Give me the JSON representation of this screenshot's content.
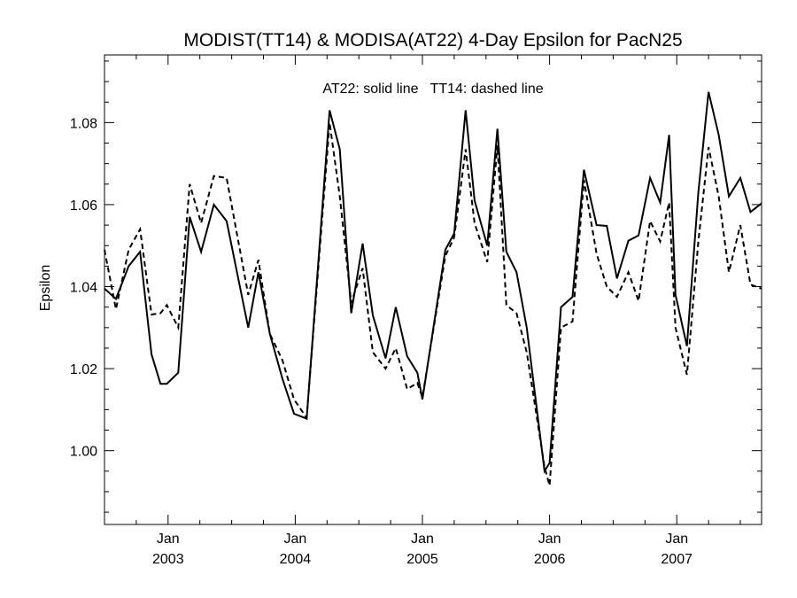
{
  "chart_data": {
    "type": "line",
    "title": "MODIST(TT14) & MODISA(AT22) 4-Day Epsilon for PacN25",
    "ylabel": "Epsilon",
    "xlabel": "",
    "annotation": "AT22: solid line   TT14: dashed line",
    "x_unit": "decimal year",
    "xlim": [
      2002.5,
      2007.667
    ],
    "ylim": [
      0.982,
      1.0965
    ],
    "grid": false,
    "y_ticks": [
      {
        "value": 1.0,
        "label": "1.00"
      },
      {
        "value": 1.02,
        "label": "1.02"
      },
      {
        "value": 1.04,
        "label": "1.04"
      },
      {
        "value": 1.06,
        "label": "1.06"
      },
      {
        "value": 1.08,
        "label": "1.08"
      }
    ],
    "x_ticks": [
      {
        "value": 2003.0,
        "month": "Jan",
        "year": "2003"
      },
      {
        "value": 2004.0,
        "month": "Jan",
        "year": "2004"
      },
      {
        "value": 2005.0,
        "month": "Jan",
        "year": "2005"
      },
      {
        "value": 2006.0,
        "month": "Jan",
        "year": "2006"
      },
      {
        "value": 2007.0,
        "month": "Jan",
        "year": "2007"
      }
    ],
    "series": [
      {
        "name": "AT22",
        "style": "solid",
        "color": "#000000",
        "points": [
          [
            2002.5,
            1.0395
          ],
          [
            2002.59,
            1.037
          ],
          [
            2002.69,
            1.045
          ],
          [
            2002.78,
            1.0485
          ],
          [
            2002.87,
            1.0235
          ],
          [
            2002.94,
            1.0163
          ],
          [
            2002.99,
            1.0163
          ],
          [
            2003.08,
            1.019
          ],
          [
            2003.17,
            1.057
          ],
          [
            2003.26,
            1.0485
          ],
          [
            2003.36,
            1.06
          ],
          [
            2003.46,
            1.056
          ],
          [
            2003.63,
            1.03
          ],
          [
            2003.71,
            1.0435
          ],
          [
            2003.8,
            1.0285
          ],
          [
            2003.9,
            1.0175
          ],
          [
            2003.99,
            1.009
          ],
          [
            2004.09,
            1.0078
          ],
          [
            2004.27,
            1.083
          ],
          [
            2004.35,
            1.0735
          ],
          [
            2004.44,
            1.0335
          ],
          [
            2004.53,
            1.0505
          ],
          [
            2004.61,
            1.033
          ],
          [
            2004.71,
            1.0225
          ],
          [
            2004.79,
            1.035
          ],
          [
            2004.88,
            1.023
          ],
          [
            2004.96,
            1.019
          ],
          [
            2005.0,
            1.0125
          ],
          [
            2005.18,
            1.049
          ],
          [
            2005.25,
            1.053
          ],
          [
            2005.34,
            1.083
          ],
          [
            2005.41,
            1.061
          ],
          [
            2005.51,
            1.05
          ],
          [
            2005.59,
            1.0785
          ],
          [
            2005.66,
            1.0485
          ],
          [
            2005.74,
            1.0435
          ],
          [
            2005.82,
            1.03
          ],
          [
            2005.96,
            0.995
          ],
          [
            2006.0,
            0.997
          ],
          [
            2006.09,
            1.035
          ],
          [
            2006.18,
            1.0375
          ],
          [
            2006.27,
            1.0685
          ],
          [
            2006.37,
            1.055
          ],
          [
            2006.45,
            1.0548
          ],
          [
            2006.53,
            1.042
          ],
          [
            2006.62,
            1.0512
          ],
          [
            2006.7,
            1.0525
          ],
          [
            2006.79,
            1.0665
          ],
          [
            2006.87,
            1.0605
          ],
          [
            2006.94,
            1.077
          ],
          [
            2006.99,
            1.038
          ],
          [
            2007.08,
            1.0255
          ],
          [
            2007.17,
            1.063
          ],
          [
            2007.25,
            1.0875
          ],
          [
            2007.33,
            1.077
          ],
          [
            2007.41,
            1.062
          ],
          [
            2007.5,
            1.0665
          ],
          [
            2007.58,
            1.0582
          ],
          [
            2007.667,
            1.0603
          ]
        ]
      },
      {
        "name": "TT14",
        "style": "dashed",
        "color": "#000000",
        "points": [
          [
            2002.5,
            1.049
          ],
          [
            2002.59,
            1.0345
          ],
          [
            2002.69,
            1.049
          ],
          [
            2002.78,
            1.054
          ],
          [
            2002.87,
            1.0332
          ],
          [
            2002.94,
            1.0335
          ],
          [
            2002.99,
            1.0355
          ],
          [
            2003.08,
            1.03
          ],
          [
            2003.17,
            1.065
          ],
          [
            2003.26,
            1.0555
          ],
          [
            2003.36,
            1.067
          ],
          [
            2003.46,
            1.0665
          ],
          [
            2003.63,
            1.038
          ],
          [
            2003.71,
            1.0465
          ],
          [
            2003.8,
            1.0285
          ],
          [
            2003.9,
            1.022
          ],
          [
            2003.99,
            1.0125
          ],
          [
            2004.09,
            1.008
          ],
          [
            2004.27,
            1.08
          ],
          [
            2004.35,
            1.062
          ],
          [
            2004.44,
            1.036
          ],
          [
            2004.53,
            1.0445
          ],
          [
            2004.61,
            1.024
          ],
          [
            2004.71,
            1.02
          ],
          [
            2004.79,
            1.025
          ],
          [
            2004.88,
            1.015
          ],
          [
            2004.96,
            1.0165
          ],
          [
            2005.0,
            1.013
          ],
          [
            2005.18,
            1.0475
          ],
          [
            2005.25,
            1.052
          ],
          [
            2005.34,
            1.0735
          ],
          [
            2005.41,
            1.0555
          ],
          [
            2005.51,
            1.046
          ],
          [
            2005.59,
            1.0745
          ],
          [
            2005.66,
            1.0355
          ],
          [
            2005.74,
            1.0335
          ],
          [
            2005.82,
            1.024
          ],
          [
            2005.96,
            0.996
          ],
          [
            2006.0,
            0.9915
          ],
          [
            2006.09,
            1.03
          ],
          [
            2006.18,
            1.0315
          ],
          [
            2006.27,
            1.066
          ],
          [
            2006.37,
            1.048
          ],
          [
            2006.45,
            1.04
          ],
          [
            2006.53,
            1.0375
          ],
          [
            2006.62,
            1.0435
          ],
          [
            2006.7,
            1.0365
          ],
          [
            2006.79,
            1.056
          ],
          [
            2006.87,
            1.051
          ],
          [
            2006.94,
            1.0605
          ],
          [
            2006.99,
            1.03
          ],
          [
            2007.08,
            1.0185
          ],
          [
            2007.17,
            1.051
          ],
          [
            2007.25,
            1.074
          ],
          [
            2007.33,
            1.062
          ],
          [
            2007.41,
            1.0435
          ],
          [
            2007.5,
            1.055
          ],
          [
            2007.58,
            1.0405
          ],
          [
            2007.667,
            1.0395
          ]
        ]
      }
    ]
  }
}
